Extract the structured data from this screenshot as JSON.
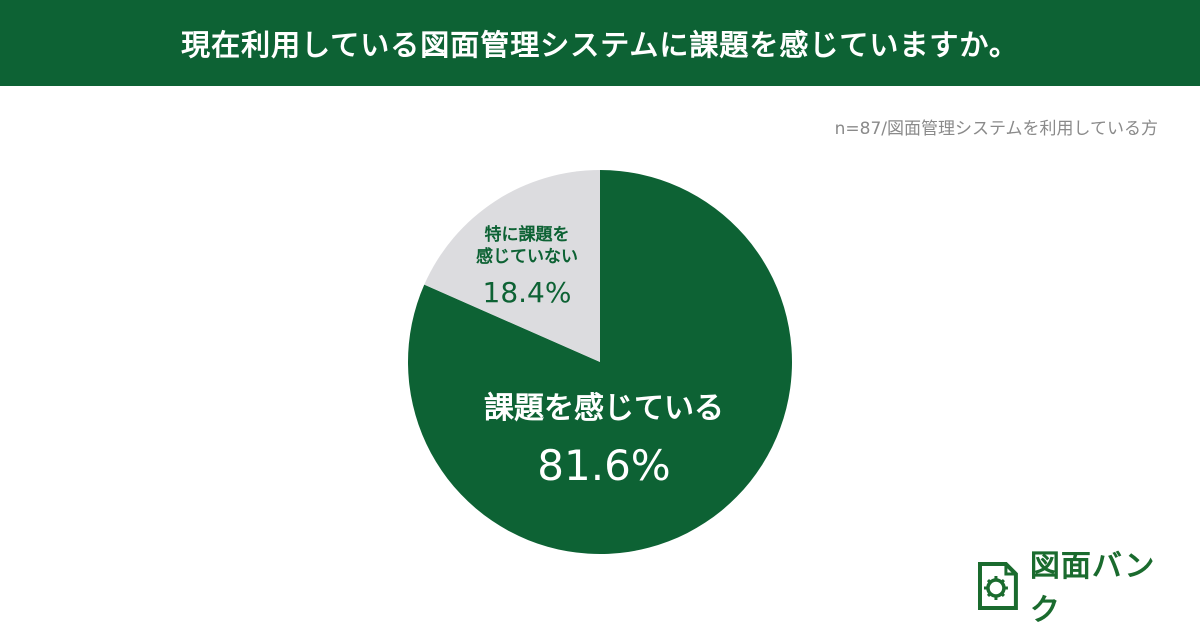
{
  "header": {
    "title": "現在利用している図面管理システムに課題を感じていますか。"
  },
  "sample_note": "n=87/図面管理システムを利用している方",
  "colors": {
    "header_bg": "#0d6234",
    "slice_main": "#0d6234",
    "slice_minor": "#dcdcdf",
    "logo": "#1a6b2e"
  },
  "chart_data": {
    "type": "pie",
    "slices": [
      {
        "label": "課題を感じている",
        "value": 81.6,
        "value_label": "81.6%",
        "color": "#0d6234"
      },
      {
        "label_lines": [
          "特に課題を",
          "感じていない"
        ],
        "value": 18.4,
        "value_label": "18.4%",
        "color": "#dcdcdf"
      }
    ]
  },
  "logo": {
    "text": "図面バンク",
    "icon": "drawing-bank-logo-icon"
  }
}
